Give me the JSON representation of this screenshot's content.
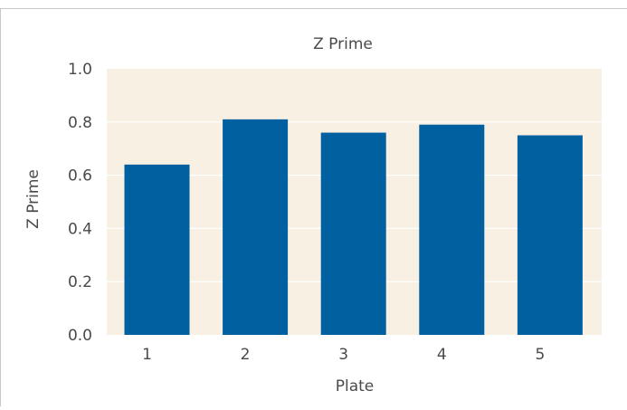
{
  "chart_data": {
    "type": "bar",
    "title": "Z Prime",
    "xlabel": "Plate",
    "ylabel": "Z Prime",
    "categories": [
      "1",
      "2",
      "3",
      "4",
      "5"
    ],
    "values": [
      0.64,
      0.81,
      0.76,
      0.79,
      0.75
    ],
    "ylim": [
      0,
      1.0
    ],
    "yticks": [
      "0.0",
      "0.2",
      "0.4",
      "0.6",
      "0.8",
      "1.0"
    ],
    "ytick_values": [
      0,
      0.2,
      0.4,
      0.6,
      0.8,
      1.0
    ],
    "grid": "horizontal",
    "legend": "none",
    "colors": {
      "bar": "#0060a0",
      "plot_bg": "#f7f0e3",
      "grid": "#ffffff",
      "frame": "#c8c8c8",
      "text": "#4a4a4a"
    }
  }
}
